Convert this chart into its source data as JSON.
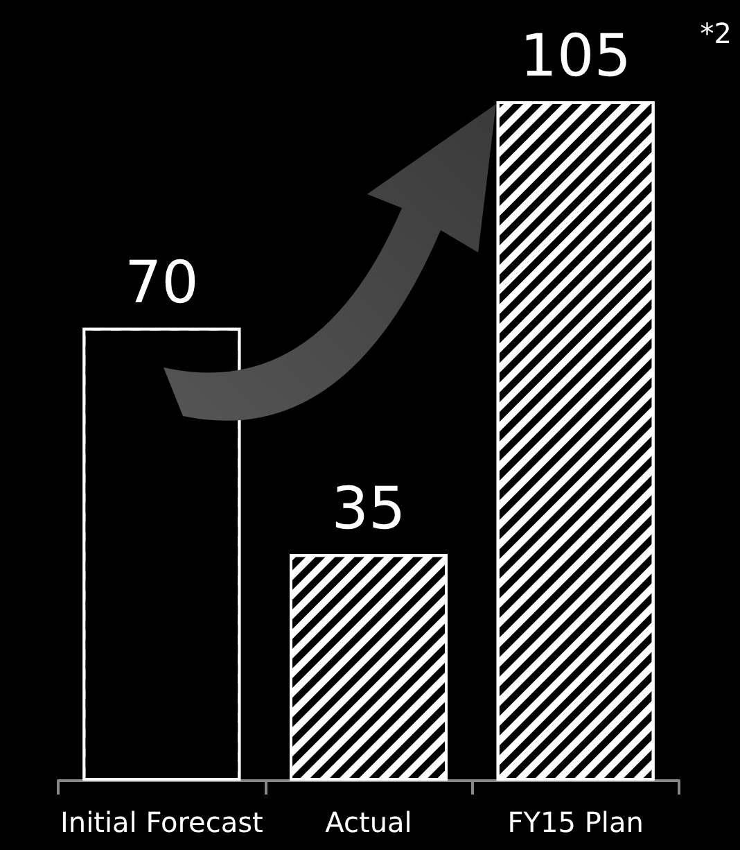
{
  "chart_data": {
    "type": "bar",
    "categories": [
      "Initial Forecast",
      "Actual",
      "FY15 Plan"
    ],
    "values": [
      70,
      35,
      105
    ],
    "colors": [
      "#000000",
      "#ffffff",
      "#ffffff"
    ],
    "data_labels": true,
    "annotations": [
      "*2"
    ]
  }
}
